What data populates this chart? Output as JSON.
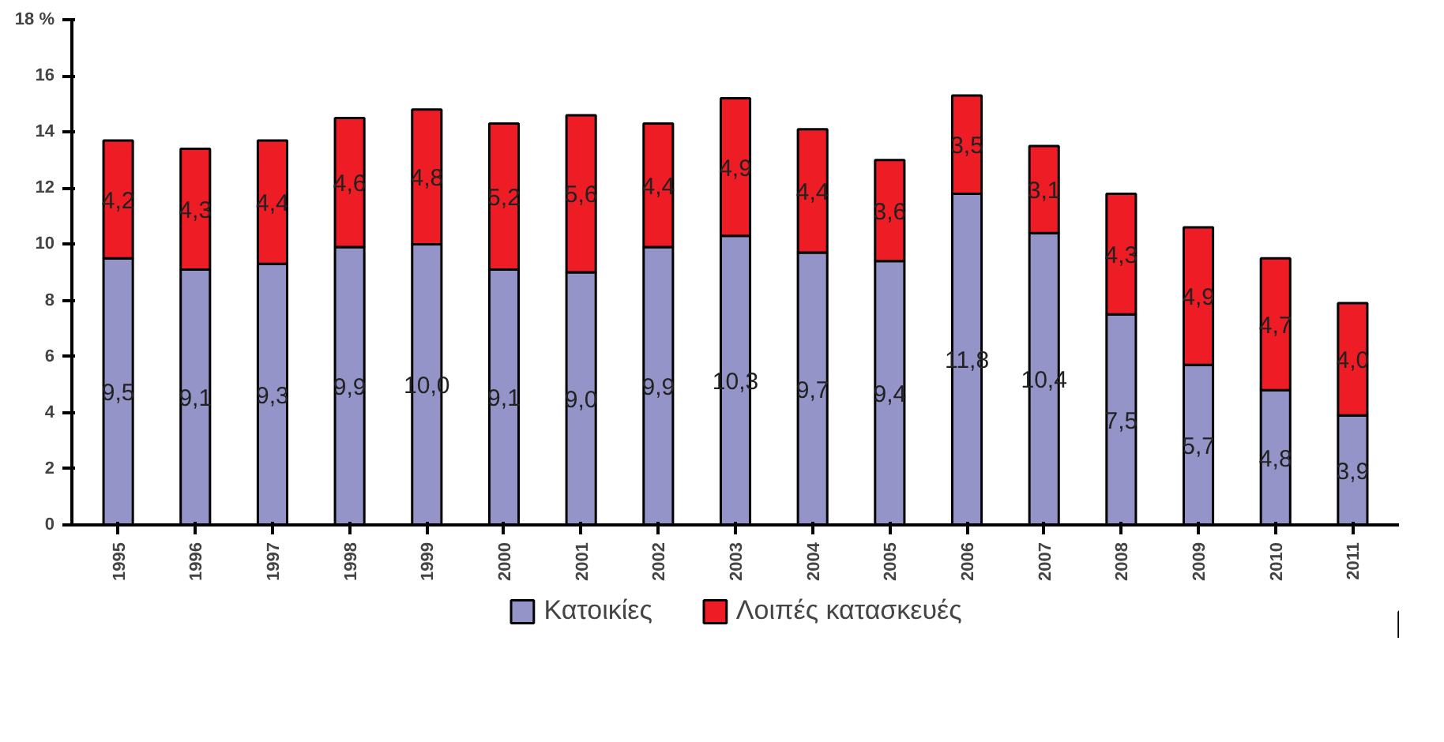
{
  "chart_data": {
    "type": "bar",
    "stacked": true,
    "categories": [
      "1995",
      "1996",
      "1997",
      "1998",
      "1999",
      "2000",
      "2001",
      "2002",
      "2003",
      "2004",
      "2005",
      "2006",
      "2007",
      "2008",
      "2009",
      "2010",
      "2011"
    ],
    "ylim": [
      0,
      18
    ],
    "yticks": [
      0,
      2,
      4,
      6,
      8,
      10,
      12,
      14,
      16,
      {
        "value": 18,
        "label": "18 %"
      }
    ],
    "grid": false,
    "legend": "bottom",
    "series": [
      {
        "name": "Κατοικίες",
        "color": "#9494c8",
        "values": [
          9.5,
          9.1,
          9.3,
          9.9,
          10.0,
          9.1,
          9.0,
          9.9,
          10.3,
          9.7,
          9.4,
          11.8,
          10.4,
          7.5,
          5.7,
          4.8,
          3.9
        ],
        "value_labels": [
          "9,5",
          "9,1",
          "9,3",
          "9,9",
          "10,0",
          "9,1",
          "9,0",
          "9,9",
          "10,3",
          "9,7",
          "9,4",
          "11,8",
          "10,4",
          "7,5",
          "5,7",
          "4,8",
          "3,9"
        ]
      },
      {
        "name": "Λοιπές κατασκευές",
        "color": "#ee1c24",
        "values": [
          4.2,
          4.3,
          4.4,
          4.6,
          4.8,
          5.2,
          5.6,
          4.4,
          4.9,
          4.4,
          3.6,
          3.5,
          3.1,
          4.3,
          4.9,
          4.7,
          4.0
        ],
        "value_labels": [
          "4,2",
          "4,3",
          "4,4",
          "4,6",
          "4,8",
          "5,2",
          "5,6",
          "4,4",
          "4,9",
          "4,4",
          "3,6",
          "3,5",
          "3,1",
          "4,3",
          "4,9",
          "4,7",
          "4,0"
        ]
      }
    ]
  }
}
